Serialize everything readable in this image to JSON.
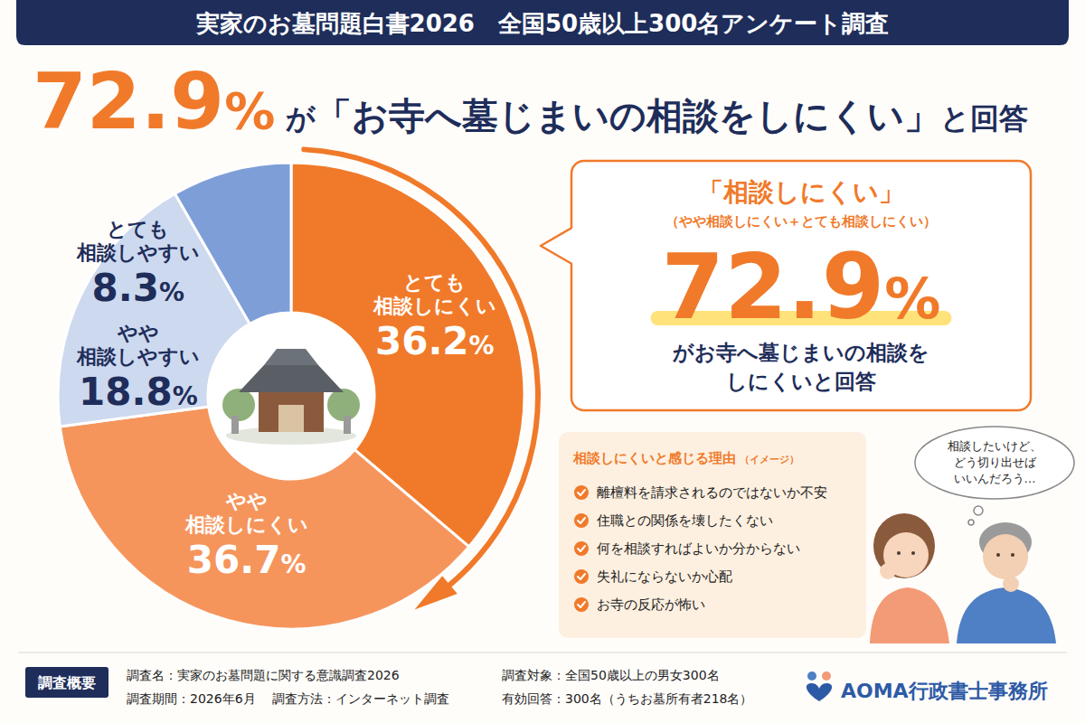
{
  "header": {
    "title": "実家のお墓問題白書2026　全国50歳以上300名アンケート調査"
  },
  "headline": {
    "value": "72.9%",
    "prefix": "が",
    "quote": "「お寺へ墓じまいの相談をしにくい」",
    "suffix": "と回答"
  },
  "chart_data": {
    "type": "donut",
    "categories": [
      "とても相談しにくい",
      "やや相談しにくい",
      "やや相談しやすい",
      "とても相談しやすい"
    ],
    "values": [
      36.2,
      36.7,
      18.8,
      8.3
    ],
    "value_labels": [
      "36.2%",
      "36.7%",
      "18.8%",
      "8.3%"
    ],
    "colors": [
      "#f07a2a",
      "#f5955c",
      "#cdd9ef",
      "#7e9ed8"
    ],
    "data_labels": true
  },
  "callout": {
    "title": "「相談しにくい」",
    "subtitle": "（やや相談しにくい＋とても相談しにくい）",
    "value": "72.9%",
    "lines": [
      "がお寺へ墓じまいの相談を",
      "しにくいと回答"
    ]
  },
  "reasons": {
    "title": "相談しにくいと感じる理由",
    "tag": "（イメージ）",
    "items": [
      "離檀料を請求されるのではないか不安",
      "住職との関係を壊したくない",
      "何を相談すればよいか分からない",
      "失礼にならないか心配",
      "お寺の反応が怖い"
    ]
  },
  "thought": {
    "lines": [
      "相談したいけど、",
      "どう切り出せば",
      "いいんだろう…"
    ]
  },
  "survey": {
    "label": "調査概要",
    "items": [
      "調査名：実家のお墓問題に関する意識調査2026",
      "調査期間：2026年6月",
      "調査方法：インターネット調査",
      "調査対象：全国50歳以上の男女300名",
      "有効回答：300名（うちお墓所有者218名）"
    ]
  },
  "logo": {
    "name": "AOMA行政書士事務所"
  }
}
